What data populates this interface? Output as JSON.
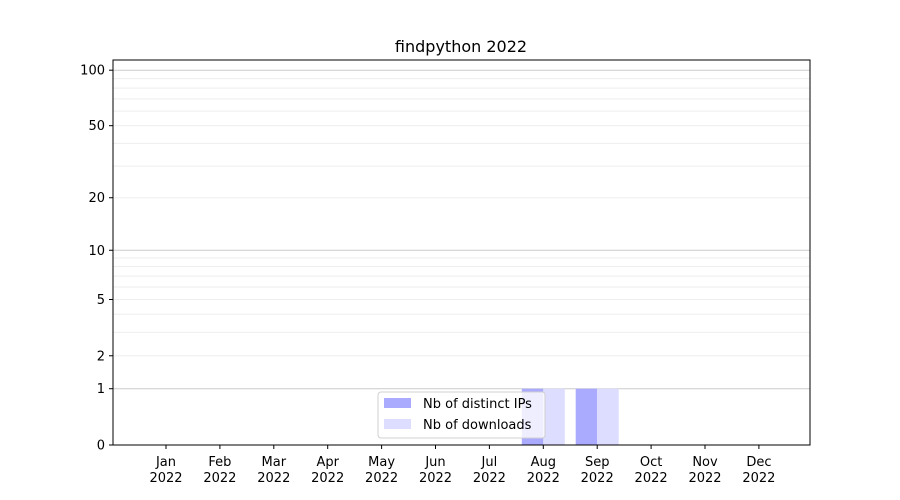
{
  "chart_data": {
    "type": "bar",
    "title": "findpython 2022",
    "xlabel": "",
    "ylabel": "",
    "y_scale": "log(1+y)",
    "ylim": [
      0,
      113
    ],
    "y_ticks": [
      0,
      1,
      2,
      5,
      10,
      20,
      50,
      100
    ],
    "y_tick_labels": [
      "0",
      "1",
      "2",
      "5",
      "10",
      "20",
      "50",
      "100"
    ],
    "grid": "horizontal, major and minor",
    "categories": [
      [
        "Jan",
        "2022"
      ],
      [
        "Feb",
        "2022"
      ],
      [
        "Mar",
        "2022"
      ],
      [
        "Apr",
        "2022"
      ],
      [
        "May",
        "2022"
      ],
      [
        "Jun",
        "2022"
      ],
      [
        "Jul",
        "2022"
      ],
      [
        "Aug",
        "2022"
      ],
      [
        "Sep",
        "2022"
      ],
      [
        "Oct",
        "2022"
      ],
      [
        "Nov",
        "2022"
      ],
      [
        "Dec",
        "2022"
      ]
    ],
    "series": [
      {
        "name": "Nb of distinct IPs",
        "color": "#aaaaff",
        "values": [
          0,
          0,
          0,
          0,
          0,
          0,
          0,
          1,
          1,
          0,
          0,
          0
        ]
      },
      {
        "name": "Nb of downloads",
        "color": "#ddddff",
        "values": [
          0,
          0,
          0,
          0,
          0,
          0,
          0,
          1,
          1,
          0,
          0,
          0
        ]
      }
    ],
    "legend_position": "lower center"
  }
}
